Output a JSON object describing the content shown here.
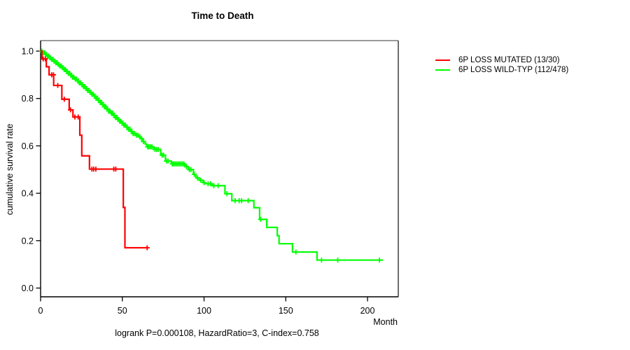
{
  "title": "Time to Death",
  "annotation": "logrank P=0.000108, HazardRatio=3, C-index=0.758",
  "legend": {
    "items": [
      {
        "label": "6P LOSS MUTATED (13/30)",
        "color": "#ff0000"
      },
      {
        "label": "6P LOSS WILD-TYP (112/478)",
        "color": "#00ff00"
      }
    ]
  },
  "chart_data": {
    "type": "line",
    "subtype": "kaplan_meier_step",
    "title": "Time to Death",
    "xlabel": "Month",
    "ylabel": "cumulative survival rate",
    "xlim": [
      0,
      218
    ],
    "ylim": [
      0,
      1.04
    ],
    "x_ticks": [
      0,
      50,
      100,
      150,
      200
    ],
    "y_ticks": [
      "0.0",
      "0.2",
      "0.4",
      "0.6",
      "0.8",
      "1.0"
    ],
    "grid": false,
    "legend_position": "top-right-outside",
    "stats": {
      "logrank_p": "0.000108",
      "hazard_ratio": "3",
      "c_index": "0.758"
    },
    "series": [
      {
        "name": "6P LOSS MUTATED (13/30)",
        "color": "#ff0000",
        "n": 30,
        "events": 13,
        "steps": [
          [
            0,
            1.0
          ],
          [
            0.8,
            0.967
          ],
          [
            3.5,
            0.934
          ],
          [
            5.2,
            0.9
          ],
          [
            8,
            0.855
          ],
          [
            13,
            0.797
          ],
          [
            17.5,
            0.752
          ],
          [
            19.8,
            0.722
          ],
          [
            24,
            0.645
          ],
          [
            25.2,
            0.558
          ],
          [
            29.9,
            0.502
          ],
          [
            50.6,
            0.34
          ],
          [
            51.6,
            0.17
          ]
        ],
        "censor_times": [
          1.6,
          2.9,
          6.8,
          7.9,
          10.5,
          14.5,
          18.3,
          21,
          23,
          31.4,
          32.5,
          33.8,
          44.8,
          46,
          65.2
        ],
        "end_time": 65.4
      },
      {
        "name": "6P LOSS WILD-TYP (112/478)",
        "color": "#00ff00",
        "n": 478,
        "events": 112,
        "steps": [
          [
            0,
            1.0
          ],
          [
            1.3,
            0.993
          ],
          [
            2.6,
            0.986
          ],
          [
            3.9,
            0.979
          ],
          [
            5.2,
            0.972
          ],
          [
            6.5,
            0.965
          ],
          [
            7.8,
            0.958
          ],
          [
            9.1,
            0.951
          ],
          [
            10.4,
            0.944
          ],
          [
            11.7,
            0.937
          ],
          [
            13,
            0.93
          ],
          [
            14.3,
            0.922
          ],
          [
            15.6,
            0.914
          ],
          [
            16.9,
            0.906
          ],
          [
            18.2,
            0.898
          ],
          [
            19.5,
            0.89
          ],
          [
            20.8,
            0.882
          ],
          [
            22.1,
            0.874
          ],
          [
            23.4,
            0.866
          ],
          [
            24.7,
            0.858
          ],
          [
            26,
            0.85
          ],
          [
            27.3,
            0.842
          ],
          [
            28.6,
            0.834
          ],
          [
            29.9,
            0.826
          ],
          [
            31.2,
            0.818
          ],
          [
            32.5,
            0.81
          ],
          [
            33.8,
            0.801
          ],
          [
            35.1,
            0.792
          ],
          [
            36.4,
            0.783
          ],
          [
            37.7,
            0.774
          ],
          [
            39,
            0.765
          ],
          [
            40.3,
            0.756
          ],
          [
            41.6,
            0.747
          ],
          [
            42.9,
            0.738
          ],
          [
            44.2,
            0.729
          ],
          [
            45.5,
            0.72
          ],
          [
            46.8,
            0.712
          ],
          [
            48.1,
            0.704
          ],
          [
            49.4,
            0.696
          ],
          [
            50.7,
            0.688
          ],
          [
            52,
            0.679
          ],
          [
            53.5,
            0.67
          ],
          [
            55,
            0.661
          ],
          [
            56.5,
            0.652
          ],
          [
            58,
            0.645
          ],
          [
            60,
            0.638
          ],
          [
            61.5,
            0.63
          ],
          [
            62.7,
            0.618
          ],
          [
            64,
            0.608
          ],
          [
            64.9,
            0.596
          ],
          [
            69.2,
            0.585
          ],
          [
            73.5,
            0.561
          ],
          [
            76.4,
            0.536
          ],
          [
            80,
            0.524
          ],
          [
            88.5,
            0.512
          ],
          [
            90.5,
            0.5
          ],
          [
            93.5,
            0.48
          ],
          [
            95,
            0.465
          ],
          [
            97,
            0.455
          ],
          [
            99.4,
            0.445
          ],
          [
            101,
            0.44
          ],
          [
            105,
            0.432
          ],
          [
            112.8,
            0.398
          ],
          [
            117,
            0.369
          ],
          [
            130.5,
            0.339
          ],
          [
            134,
            0.29
          ],
          [
            138.4,
            0.256
          ],
          [
            144.8,
            0.221
          ],
          [
            145.9,
            0.187
          ],
          [
            154.1,
            0.152
          ],
          [
            169.1,
            0.118
          ]
        ],
        "censor_times": [
          0.7,
          1.6,
          2.5,
          3.3,
          4.2,
          5.0,
          5.9,
          6.7,
          7.6,
          8.4,
          9.3,
          10.1,
          11.0,
          11.8,
          12.7,
          13.5,
          14.4,
          15.2,
          16.1,
          16.9,
          17.8,
          18.6,
          19.5,
          20.3,
          21.2,
          22.0,
          22.9,
          23.7,
          24.6,
          25.4,
          26.3,
          27.1,
          28.0,
          28.8,
          29.7,
          30.5,
          31.4,
          32.2,
          33.1,
          33.9,
          34.8,
          35.6,
          36.5,
          37.3,
          38.2,
          39.0,
          39.9,
          40.7,
          41.6,
          42.4,
          43.3,
          44.1,
          45.0,
          45.8,
          46.7,
          47.5,
          48.4,
          49.2,
          50.1,
          50.9,
          51.8,
          52.9,
          53.8,
          54.7,
          55.7,
          56.6,
          57.6,
          58.6,
          59.6,
          60.7,
          61.8,
          63.0,
          65.5,
          66.3,
          67.2,
          68.1,
          70.0,
          71.0,
          72.0,
          74.3,
          75.2,
          77.0,
          78.0,
          80.6,
          81.4,
          82.3,
          83.2,
          84.1,
          85.0,
          85.9,
          86.8,
          87.7,
          89.3,
          91.0,
          92.0,
          94.0,
          96.0,
          98.0,
          100.0,
          102.5,
          104.0,
          106.0,
          108.6,
          114.0,
          119.0,
          121.5,
          123.0,
          127.0,
          134.6,
          156.2,
          171.9,
          181.8,
          207.3
        ],
        "end_time": 209.5
      }
    ]
  }
}
